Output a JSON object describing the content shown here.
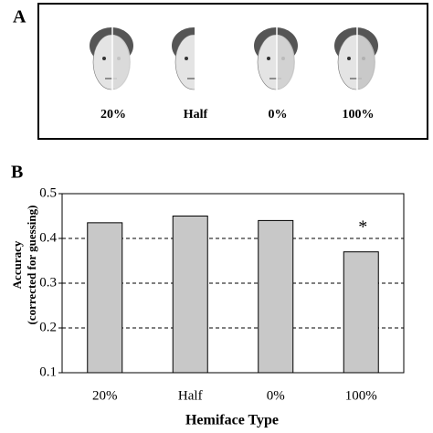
{
  "panel_a": {
    "label": "A",
    "captions": [
      "20%",
      "Half",
      "0%",
      "100%"
    ]
  },
  "chart_data": {
    "type": "bar",
    "panel_label": "B",
    "categories": [
      "20%",
      "Half",
      "0%",
      "100%"
    ],
    "values": [
      0.435,
      0.45,
      0.44,
      0.37
    ],
    "color": "#c8c8c8",
    "ylim": [
      0.1,
      0.5
    ],
    "yticks": [
      0.1,
      0.2,
      0.3,
      0.4,
      0.5
    ],
    "grid": true,
    "ylabel": "Accuracy",
    "ylabel_sub": "(corrected for guessing)",
    "xlabel": "Hemiface Type",
    "annotation": "*"
  }
}
